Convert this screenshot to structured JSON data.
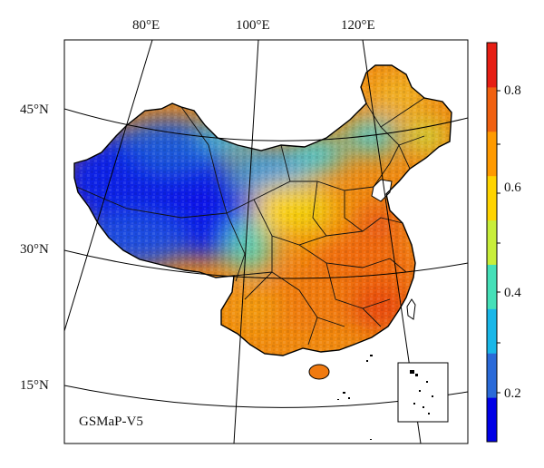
{
  "map": {
    "product_label": "GSMaP-V5",
    "longitude_labels": [
      "80°E",
      "100°E",
      "120°E"
    ],
    "latitude_labels": [
      "45°N",
      "30°N",
      "15°N"
    ]
  },
  "colorbar": {
    "tick_labels": [
      "0.8",
      "0.6",
      "0.4",
      "0.2"
    ],
    "colors": [
      "#0000e6",
      "#2a6ad8",
      "#19b7e8",
      "#45e0b8",
      "#c8ee3a",
      "#ffd400",
      "#ff9a00",
      "#f06010",
      "#e61e14"
    ]
  }
}
